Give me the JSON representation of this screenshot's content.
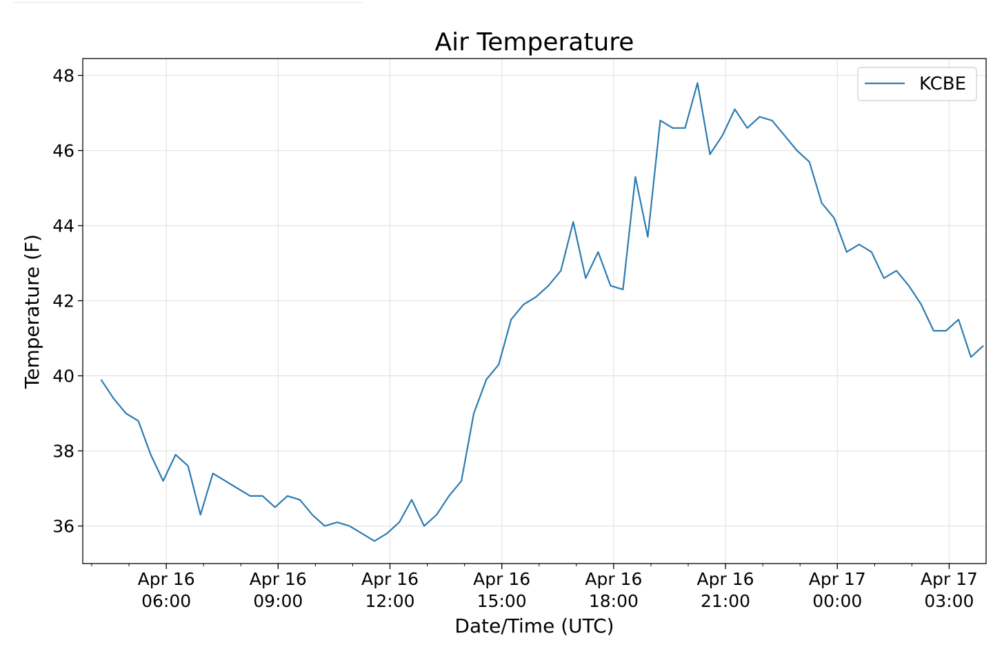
{
  "chart_data": {
    "type": "line",
    "title": "Air Temperature",
    "xlabel": "Date/Time (UTC)",
    "ylabel": "Temperature (F)",
    "ylim": [
      35,
      48.45
    ],
    "xlim": [
      "2019-04-16 04:00",
      "2019-04-17 03:55"
    ],
    "grid": true,
    "legend_position": "top-right",
    "y_ticks": [
      36,
      38,
      40,
      42,
      44,
      46,
      48
    ],
    "x_ticks": [
      {
        "at": "2019-04-16 06:00",
        "line1": "Apr 16",
        "line2": "06:00"
      },
      {
        "at": "2019-04-16 09:00",
        "line1": "Apr 16",
        "line2": "09:00"
      },
      {
        "at": "2019-04-16 12:00",
        "line1": "Apr 16",
        "line2": "12:00"
      },
      {
        "at": "2019-04-16 15:00",
        "line1": "Apr 16",
        "line2": "15:00"
      },
      {
        "at": "2019-04-16 18:00",
        "line1": "Apr 16",
        "line2": "18:00"
      },
      {
        "at": "2019-04-16 21:00",
        "line1": "Apr 16",
        "line2": "21:00"
      },
      {
        "at": "2019-04-17 00:00",
        "line1": "Apr 17",
        "line2": "00:00"
      },
      {
        "at": "2019-04-17 03:00",
        "line1": "Apr 17",
        "line2": "03:00"
      }
    ],
    "series": [
      {
        "name": "KCBE",
        "color": "#2b7bb0",
        "points": [
          [
            "2019-04-16 04:15",
            39.9
          ],
          [
            "2019-04-16 04:35",
            39.4
          ],
          [
            "2019-04-16 04:55",
            39.0
          ],
          [
            "2019-04-16 05:15",
            38.8
          ],
          [
            "2019-04-16 05:35",
            37.9
          ],
          [
            "2019-04-16 05:55",
            37.2
          ],
          [
            "2019-04-16 06:15",
            37.9
          ],
          [
            "2019-04-16 06:35",
            37.6
          ],
          [
            "2019-04-16 06:55",
            36.3
          ],
          [
            "2019-04-16 07:15",
            37.4
          ],
          [
            "2019-04-16 07:35",
            37.2
          ],
          [
            "2019-04-16 07:55",
            37.0
          ],
          [
            "2019-04-16 08:15",
            36.8
          ],
          [
            "2019-04-16 08:35",
            36.8
          ],
          [
            "2019-04-16 08:55",
            36.5
          ],
          [
            "2019-04-16 09:15",
            36.8
          ],
          [
            "2019-04-16 09:35",
            36.7
          ],
          [
            "2019-04-16 09:55",
            36.3
          ],
          [
            "2019-04-16 10:15",
            36.0
          ],
          [
            "2019-04-16 10:35",
            36.1
          ],
          [
            "2019-04-16 10:55",
            36.0
          ],
          [
            "2019-04-16 11:15",
            35.8
          ],
          [
            "2019-04-16 11:35",
            35.6
          ],
          [
            "2019-04-16 11:55",
            35.8
          ],
          [
            "2019-04-16 12:15",
            36.1
          ],
          [
            "2019-04-16 12:35",
            36.7
          ],
          [
            "2019-04-16 12:55",
            36.0
          ],
          [
            "2019-04-16 13:15",
            36.3
          ],
          [
            "2019-04-16 13:35",
            36.8
          ],
          [
            "2019-04-16 13:55",
            37.2
          ],
          [
            "2019-04-16 14:15",
            39.0
          ],
          [
            "2019-04-16 14:35",
            39.9
          ],
          [
            "2019-04-16 14:55",
            40.3
          ],
          [
            "2019-04-16 15:15",
            41.5
          ],
          [
            "2019-04-16 15:35",
            41.9
          ],
          [
            "2019-04-16 15:55",
            42.1
          ],
          [
            "2019-04-16 16:15",
            42.4
          ],
          [
            "2019-04-16 16:35",
            42.8
          ],
          [
            "2019-04-16 16:55",
            44.1
          ],
          [
            "2019-04-16 17:15",
            42.6
          ],
          [
            "2019-04-16 17:35",
            43.3
          ],
          [
            "2019-04-16 17:55",
            42.4
          ],
          [
            "2019-04-16 18:15",
            42.3
          ],
          [
            "2019-04-16 18:35",
            45.3
          ],
          [
            "2019-04-16 18:55",
            43.7
          ],
          [
            "2019-04-16 19:15",
            46.8
          ],
          [
            "2019-04-16 19:35",
            46.6
          ],
          [
            "2019-04-16 19:55",
            46.6
          ],
          [
            "2019-04-16 20:15",
            47.8
          ],
          [
            "2019-04-16 20:35",
            45.9
          ],
          [
            "2019-04-16 20:55",
            46.4
          ],
          [
            "2019-04-16 21:15",
            47.1
          ],
          [
            "2019-04-16 21:35",
            46.6
          ],
          [
            "2019-04-16 21:55",
            46.9
          ],
          [
            "2019-04-16 22:15",
            46.8
          ],
          [
            "2019-04-16 22:35",
            46.4
          ],
          [
            "2019-04-16 22:55",
            46.0
          ],
          [
            "2019-04-16 23:15",
            45.7
          ],
          [
            "2019-04-16 23:35",
            44.6
          ],
          [
            "2019-04-16 23:55",
            44.2
          ],
          [
            "2019-04-17 00:15",
            43.3
          ],
          [
            "2019-04-17 00:35",
            43.5
          ],
          [
            "2019-04-17 00:55",
            43.3
          ],
          [
            "2019-04-17 01:15",
            42.6
          ],
          [
            "2019-04-17 01:35",
            42.8
          ],
          [
            "2019-04-17 01:55",
            42.4
          ],
          [
            "2019-04-17 02:15",
            41.9
          ],
          [
            "2019-04-17 02:35",
            41.2
          ],
          [
            "2019-04-17 02:55",
            41.2
          ],
          [
            "2019-04-17 03:15",
            41.5
          ],
          [
            "2019-04-17 03:35",
            40.5
          ],
          [
            "2019-04-17 03:55",
            40.8
          ]
        ]
      }
    ]
  }
}
